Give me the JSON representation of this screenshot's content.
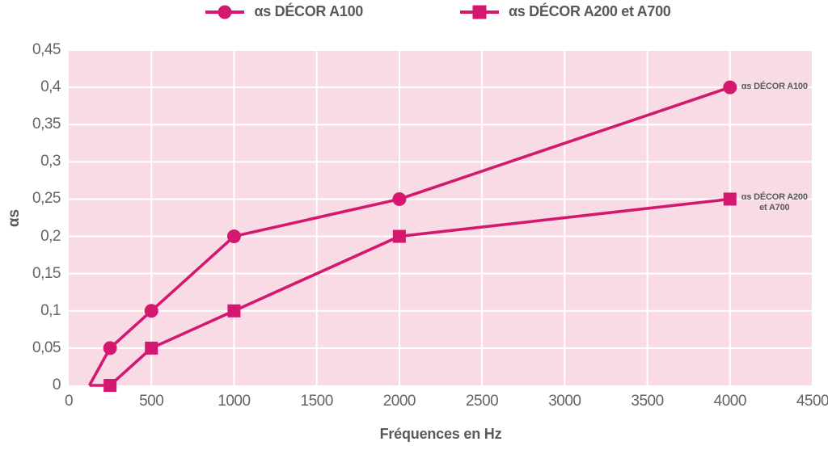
{
  "colors": {
    "accent": "#d5186f",
    "plot_bg": "#f8dbe4",
    "grid": "#ffffff",
    "text": "#58595b",
    "tick_text": "#636467"
  },
  "chart_data": {
    "type": "line",
    "title": "",
    "xlabel": "Fréquences en Hz",
    "ylabel": "αs",
    "xlim": [
      0,
      4500
    ],
    "ylim": [
      0,
      0.45
    ],
    "grid": true,
    "legend_position": "top",
    "x_ticks": [
      0,
      500,
      1000,
      1500,
      2000,
      2500,
      3000,
      3500,
      4000,
      4500
    ],
    "x_tick_labels": [
      "0",
      "500",
      "1000",
      "1500",
      "2000",
      "2500",
      "3000",
      "3500",
      "4000",
      "4500"
    ],
    "y_ticks": [
      0,
      0.05,
      0.1,
      0.15,
      0.2,
      0.25,
      0.3,
      0.35,
      0.4,
      0.45
    ],
    "y_tick_labels": [
      "0",
      "0,05",
      "0,1",
      "0,15",
      "0,2",
      "0,25",
      "0,3",
      "0,35",
      "0,4",
      "0,45"
    ],
    "series": [
      {
        "name": "αs DÉCOR A100",
        "marker": "circle",
        "color": "#d5186f",
        "x": [
          125,
          250,
          500,
          1000,
          2000,
          4000
        ],
        "values": [
          0,
          0.05,
          0.1,
          0.2,
          0.25,
          0.4
        ],
        "marker_start_index": 1,
        "end_label_lines": [
          "αs DÉCOR A100"
        ]
      },
      {
        "name": "αs DÉCOR A200 et A700",
        "marker": "square",
        "color": "#d5186f",
        "x": [
          125,
          250,
          500,
          1000,
          2000,
          4000
        ],
        "values": [
          0,
          0,
          0.05,
          0.1,
          0.2,
          0.25
        ],
        "marker_start_index": 1,
        "end_label_lines": [
          "αs DÉCOR A200",
          "et A700"
        ]
      }
    ]
  }
}
